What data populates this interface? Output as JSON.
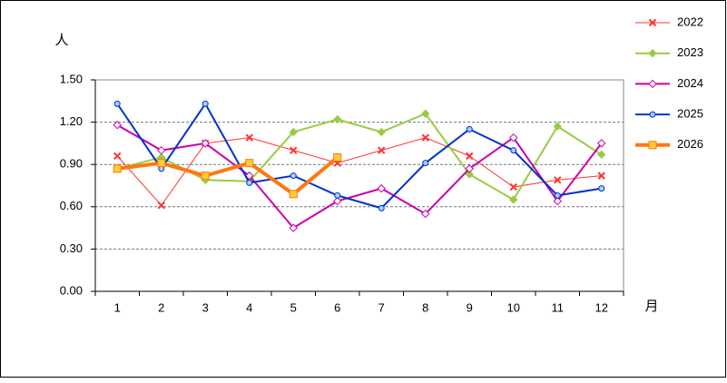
{
  "chart_data": {
    "type": "line",
    "y_label": "人",
    "x_label": "月",
    "categories": [
      "1",
      "2",
      "3",
      "4",
      "5",
      "6",
      "7",
      "8",
      "9",
      "10",
      "11",
      "12"
    ],
    "ylim": [
      0,
      1.5
    ],
    "yticks": [
      {
        "value": 0,
        "label": "0.00"
      },
      {
        "value": 0.3,
        "label": "0.30"
      },
      {
        "value": 0.6,
        "label": "0.60"
      },
      {
        "value": 0.9,
        "label": "0.90"
      },
      {
        "value": 1.2,
        "label": "1.20"
      },
      {
        "value": 1.5,
        "label": "1.50"
      }
    ],
    "grid": true,
    "legend": "right",
    "series": [
      {
        "name": "2022",
        "color": "#ff3333",
        "marker": "x",
        "width": 1,
        "values": [
          0.96,
          0.61,
          1.05,
          1.09,
          1.0,
          0.91,
          1.0,
          1.09,
          0.96,
          0.74,
          0.79,
          0.82
        ]
      },
      {
        "name": "2023",
        "color": "#99cc44",
        "marker": "diamond",
        "width": 2,
        "values": [
          0.87,
          0.95,
          0.79,
          0.78,
          1.13,
          1.22,
          1.13,
          1.26,
          0.83,
          0.65,
          1.17,
          0.97
        ]
      },
      {
        "name": "2024",
        "color": "#cc00aa",
        "marker": "diamond-open",
        "width": 2,
        "values": [
          1.18,
          1.0,
          1.05,
          0.82,
          0.45,
          0.64,
          0.73,
          0.55,
          0.87,
          1.09,
          0.64,
          1.05
        ]
      },
      {
        "name": "2025",
        "color": "#0033cc",
        "marker": "circle",
        "width": 2,
        "values": [
          1.33,
          0.87,
          1.33,
          0.77,
          0.82,
          0.68,
          0.59,
          0.91,
          1.15,
          1.0,
          0.68,
          0.73
        ]
      },
      {
        "name": "2026",
        "color": "#ff7711",
        "marker": "square",
        "width": 4,
        "values": [
          0.87,
          0.91,
          0.82,
          0.91,
          0.69,
          0.95,
          null,
          null,
          null,
          null,
          null,
          null
        ]
      }
    ]
  }
}
